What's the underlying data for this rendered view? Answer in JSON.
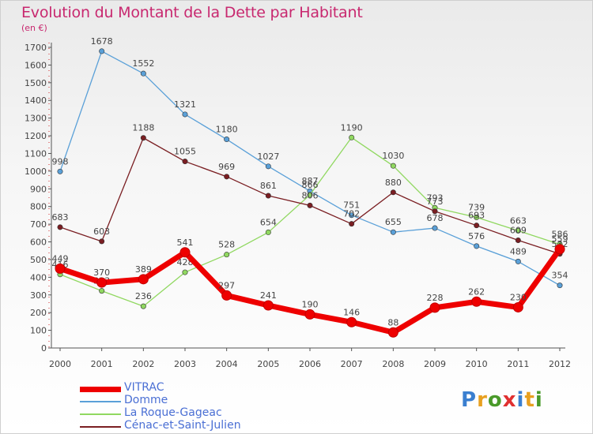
{
  "header": {
    "title": "Evolution du Montant de la Dette par Habitant",
    "subtitle": "(en €)"
  },
  "logo": {
    "text": "Proxiti",
    "colors": [
      "#3a7fd0",
      "#e8a020",
      "#4a9a2a",
      "#e03030",
      "#3a7fd0",
      "#e8a020",
      "#4a9a2a"
    ]
  },
  "chart_data": {
    "type": "line",
    "x": [
      "2000",
      "2001",
      "2002",
      "2003",
      "2004",
      "2005",
      "2006",
      "2007",
      "2008",
      "2009",
      "2010",
      "2011",
      "2012"
    ],
    "ylim": [
      0,
      1700
    ],
    "yticks": [
      0,
      100,
      200,
      300,
      400,
      500,
      600,
      700,
      800,
      900,
      1000,
      1100,
      1200,
      1300,
      1400,
      1500,
      1600,
      1700
    ],
    "grid": false,
    "legend_position": "bottom-left",
    "series": [
      {
        "name": "Domme",
        "color": "#5aa0d8",
        "values": [
          998,
          1678,
          1552,
          1321,
          1180,
          1027,
          887,
          751,
          655,
          678,
          576,
          489,
          354
        ]
      },
      {
        "name": "La Roque-Gageac",
        "color": "#90d860",
        "values": [
          416,
          323,
          236,
          428,
          528,
          654,
          866,
          1190,
          1030,
          793,
          739,
          663,
          586
        ]
      },
      {
        "name": "Cénac-et-Saint-Julien",
        "color": "#7a1e22",
        "values": [
          683,
          603,
          1188,
          1055,
          969,
          861,
          806,
          702,
          880,
          773,
          693,
          609,
          532
        ]
      },
      {
        "name": "VITRAC",
        "color": "#ee0000",
        "values": [
          449,
          370,
          389,
          541,
          297,
          241,
          190,
          146,
          88,
          228,
          262,
          230,
          559
        ]
      }
    ]
  }
}
